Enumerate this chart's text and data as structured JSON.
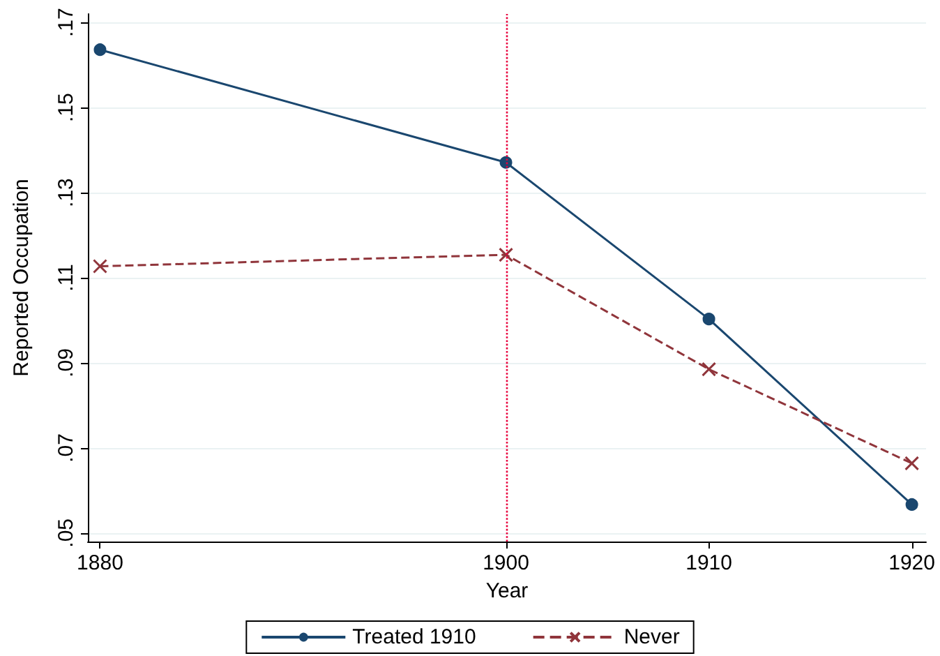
{
  "chart_data": {
    "type": "line",
    "xlabel": "Year",
    "ylabel": "Reported Occupation",
    "x": [
      1880,
      1900,
      1910,
      1920
    ],
    "series": [
      {
        "name": "Treated 1910",
        "color": "#1a476f",
        "values": [
          0.1636,
          0.1371,
          0.1003,
          0.0567
        ],
        "marker": "circle",
        "line_style": "solid"
      },
      {
        "name": "Never",
        "color": "#90353b",
        "values": [
          0.1127,
          0.1154,
          0.0885,
          0.0664
        ],
        "marker": "cross",
        "line_style": "dashed"
      }
    ],
    "xlim": [
      1879.4,
      1920.7
    ],
    "xticks": [
      1880,
      1900,
      1910,
      1920
    ],
    "ylim": [
      0.048,
      0.172
    ],
    "yticks": [
      {
        "value": 0.05,
        "label": ".05"
      },
      {
        "value": 0.07,
        "label": ".07"
      },
      {
        "value": 0.09,
        "label": ".09"
      },
      {
        "value": 0.11,
        "label": ".11"
      },
      {
        "value": 0.13,
        "label": ".13"
      },
      {
        "value": 0.15,
        "label": ".15"
      },
      {
        "value": 0.17,
        "label": ".17"
      }
    ],
    "ref_lines": [
      {
        "axis": "x",
        "value": 1900,
        "color": "#e8003c",
        "line_style": "dotted"
      }
    ],
    "grid": "y",
    "legend": "bottom"
  }
}
